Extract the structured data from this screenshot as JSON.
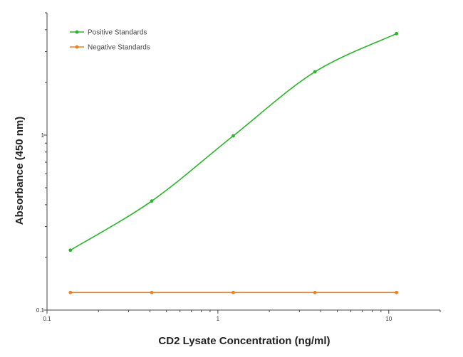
{
  "chart_data": {
    "type": "line",
    "xlabel": "CD2 Lysate Concentration (ng/ml)",
    "ylabel": "Absorbance (450 nm)",
    "x_scale": "log",
    "y_scale": "log",
    "xlim": [
      0.1,
      20
    ],
    "ylim": [
      0.1,
      5
    ],
    "x_ticks": [
      {
        "value": 0.1,
        "label": "0.1"
      },
      {
        "value": 1,
        "label": "1"
      },
      {
        "value": 10,
        "label": "10"
      }
    ],
    "y_ticks": [
      {
        "value": 0.1,
        "label": "0.1"
      },
      {
        "value": 1,
        "label": "1"
      }
    ],
    "grid": false,
    "legend_position": "top-left",
    "series": [
      {
        "name": "Positive Standards",
        "color": "#2bb52b",
        "x": [
          0.137,
          0.41,
          1.23,
          3.7,
          11.1
        ],
        "y": [
          0.22,
          0.42,
          0.99,
          2.3,
          3.8
        ],
        "line": "fitted-curve"
      },
      {
        "name": "Negative Standards",
        "color": "#f07f1e",
        "x": [
          0.137,
          0.41,
          1.23,
          3.7,
          11.1
        ],
        "y": [
          0.126,
          0.126,
          0.126,
          0.126,
          0.126
        ],
        "line": "straight"
      }
    ]
  }
}
